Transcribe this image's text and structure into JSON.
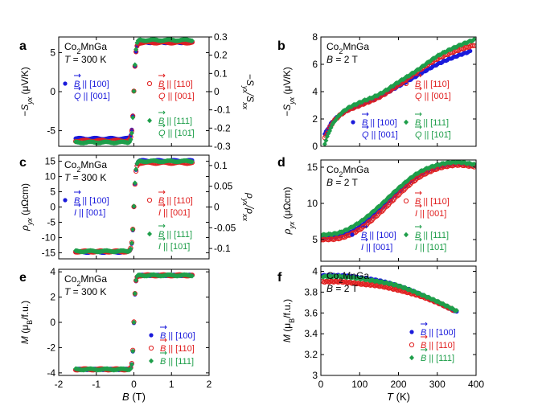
{
  "colors": {
    "blue": "#1a1adb",
    "red": "#e02020",
    "green": "#1e9e4a",
    "axis": "#000000"
  },
  "chart_data": [
    {
      "id": "a",
      "type": "line",
      "panel_label": "a",
      "title_lines": [
        "Co2MnGa",
        "T = 300 K"
      ],
      "xlim": [
        -2,
        2
      ],
      "ylim": [
        -7,
        7
      ],
      "ylabel": "−S_yx (μV/K)",
      "yticks": [
        -5,
        0,
        5
      ],
      "y2label": "−S_yx/S_xx",
      "y2lim": [
        -0.3,
        0.3
      ],
      "y2ticks": [
        0.3,
        0.2,
        0.1,
        0,
        -0.1,
        -0.2,
        -0.3
      ],
      "y2ticklabels": [
        "0.3",
        "0.2",
        "0.1",
        "0",
        "-0.1",
        "-0.2",
        "-0.3"
      ],
      "legend": [
        {
          "color": "blue",
          "marker": "dot",
          "field": "B",
          "fdir": "[100]",
          "sub": "Q",
          "sdir": "[001]"
        },
        {
          "color": "red",
          "marker": "open",
          "field": "B",
          "fdir": "[110]",
          "sub": "Q",
          "sdir": "[001]"
        },
        {
          "color": "green",
          "marker": "diamond",
          "field": "B",
          "fdir": "[111]",
          "sub": "Q",
          "sdir": "[101̄]"
        }
      ],
      "series": [
        {
          "name": "B||[100], Q||[001]",
          "color": "blue",
          "sat": 6.3,
          "offset": -6.0,
          "width": 0.05
        },
        {
          "name": "B||[110], Q||[001]",
          "color": "red",
          "sat": 6.3,
          "offset": -6.3,
          "width": 0.05
        },
        {
          "name": "B||[111], Q||[10-1]",
          "color": "green",
          "sat": 6.6,
          "offset": -6.5,
          "width": 0.05
        }
      ]
    },
    {
      "id": "b",
      "type": "line",
      "panel_label": "b",
      "title_lines": [
        "Co2MnGa",
        "B = 2 T"
      ],
      "xlim": [
        0,
        400
      ],
      "ylim": [
        0,
        8
      ],
      "ylabel": "−S_yx (μV/K)",
      "yticks": [
        0,
        2,
        4,
        6,
        8
      ],
      "legend": [
        {
          "color": "blue",
          "marker": "dot",
          "field": "B",
          "fdir": "[100]",
          "sub": "Q",
          "sdir": "[001]"
        },
        {
          "color": "red",
          "marker": "open",
          "field": "B",
          "fdir": "[110]",
          "sub": "Q",
          "sdir": "[001]"
        },
        {
          "color": "green",
          "marker": "diamond",
          "field": "B",
          "fdir": "[111]",
          "sub": "Q",
          "sdir": "[101̄]"
        }
      ],
      "series": [
        {
          "name": "B||[100]",
          "color": "blue",
          "x": [
            10,
            30,
            60,
            100,
            150,
            200,
            250,
            300,
            350,
            385
          ],
          "y": [
            0.9,
            1.8,
            2.5,
            3.0,
            3.6,
            4.4,
            5.2,
            6.0,
            6.6,
            6.95
          ]
        },
        {
          "name": "B||[110]",
          "color": "red",
          "x": [
            10,
            30,
            60,
            100,
            150,
            200,
            250,
            300,
            350,
            395
          ],
          "y": [
            0.6,
            1.7,
            2.5,
            3.0,
            3.6,
            4.5,
            5.5,
            6.4,
            7.0,
            7.4
          ]
        },
        {
          "name": "B||[111]",
          "color": "green",
          "x": [
            10,
            30,
            60,
            100,
            150,
            200,
            250,
            300,
            350,
            395
          ],
          "y": [
            0.2,
            1.6,
            2.6,
            3.2,
            3.8,
            4.7,
            5.6,
            6.6,
            7.3,
            7.8
          ]
        }
      ]
    },
    {
      "id": "c",
      "type": "line",
      "panel_label": "c",
      "title_lines": [
        "Co2MnGa",
        "T = 300 K"
      ],
      "xlim": [
        -2,
        2
      ],
      "ylim": [
        -17,
        17
      ],
      "ylabel": "ρ_yx (μΩcm)",
      "yticks": [
        -15,
        -10,
        -5,
        0,
        5,
        10,
        15
      ],
      "y2label": "ρ_yx/ρ_xx",
      "y2lim": [
        -0.125,
        0.125
      ],
      "y2ticks": [
        0.1,
        0.05,
        0,
        -0.05,
        -0.1
      ],
      "y2ticklabels": [
        "0.1",
        "0.05",
        "0",
        "-0.05",
        "-0.1"
      ],
      "legend": [
        {
          "color": "blue",
          "marker": "dot",
          "field": "B",
          "fdir": "[100]",
          "sub": "I",
          "sdir": "[001]"
        },
        {
          "color": "red",
          "marker": "open",
          "field": "B",
          "fdir": "[110]",
          "sub": "I",
          "sdir": "[001]"
        },
        {
          "color": "green",
          "marker": "diamond",
          "field": "B",
          "fdir": "[111]",
          "sub": "I",
          "sdir": "[101̄]"
        }
      ],
      "series": [
        {
          "name": "B||[100], I||[001]",
          "color": "blue",
          "sat": 15.2,
          "offset": -14.8,
          "width": 0.05
        },
        {
          "name": "B||[110], I||[001]",
          "color": "red",
          "sat": 14.5,
          "offset": -14.6,
          "width": 0.05
        },
        {
          "name": "B||[111], I||[10-1]",
          "color": "green",
          "sat": 15.0,
          "offset": -14.5,
          "width": 0.05
        }
      ]
    },
    {
      "id": "d",
      "type": "line",
      "panel_label": "d",
      "title_lines": [
        "Co2MnGa",
        "B = 2 T"
      ],
      "xlim": [
        0,
        400
      ],
      "ylim": [
        2,
        16
      ],
      "ylabel": "ρ_yx (μΩcm)",
      "yticks": [
        5,
        10,
        15
      ],
      "legend": [
        {
          "color": "blue",
          "marker": "dot",
          "field": "B",
          "fdir": "[100]",
          "sub": "I",
          "sdir": "[001]"
        },
        {
          "color": "red",
          "marker": "open",
          "field": "B",
          "fdir": "[110]",
          "sub": "I",
          "sdir": "[001]"
        },
        {
          "color": "green",
          "marker": "diamond",
          "field": "B",
          "fdir": "[111]",
          "sub": "I",
          "sdir": "[101̄]"
        }
      ],
      "series": [
        {
          "name": "B||[100]",
          "color": "blue",
          "x": [
            0,
            50,
            100,
            150,
            200,
            250,
            300,
            350,
            395
          ],
          "y": [
            5.2,
            5.5,
            6.8,
            9.0,
            11.6,
            13.8,
            15.0,
            15.5,
            15.3
          ]
        },
        {
          "name": "B||[110]",
          "color": "red",
          "x": [
            0,
            50,
            100,
            150,
            200,
            250,
            300,
            350,
            395
          ],
          "y": [
            5.0,
            5.2,
            6.4,
            8.6,
            11.2,
            13.5,
            14.8,
            15.3,
            15.1
          ]
        },
        {
          "name": "B||[111]",
          "color": "green",
          "x": [
            0,
            50,
            100,
            150,
            200,
            250,
            300,
            350,
            395
          ],
          "y": [
            5.6,
            6.0,
            7.4,
            9.6,
            12.1,
            14.2,
            15.3,
            15.7,
            15.4
          ]
        }
      ]
    },
    {
      "id": "e",
      "type": "line",
      "panel_label": "e",
      "title_lines": [
        "Co2MnGa",
        "T = 300 K"
      ],
      "xlim": [
        -2,
        2
      ],
      "ylim": [
        -4.2,
        4.2
      ],
      "xlabel": "B (T)",
      "xticks": [
        -2,
        -1,
        0,
        1,
        2
      ],
      "ylabel": "M (μB/f.u.)",
      "yticks": [
        -4,
        -2,
        0,
        2,
        4
      ],
      "legend": [
        {
          "color": "blue",
          "marker": "dot",
          "field": "B",
          "fdir": "[100]"
        },
        {
          "color": "red",
          "marker": "open",
          "field": "B",
          "fdir": "[110]"
        },
        {
          "color": "green",
          "marker": "diamond",
          "field": "B",
          "fdir": "[111]"
        }
      ],
      "series": [
        {
          "name": "B||[100]",
          "color": "blue",
          "sat": 3.72,
          "offset": -3.72,
          "width": 0.04
        },
        {
          "name": "B||[110]",
          "color": "red",
          "sat": 3.72,
          "offset": -3.72,
          "width": 0.04
        },
        {
          "name": "B||[111]",
          "color": "green",
          "sat": 3.72,
          "offset": -3.72,
          "width": 0.04
        }
      ]
    },
    {
      "id": "f",
      "type": "line",
      "panel_label": "f",
      "title_lines": [
        "Co2MnGa",
        "B = 2 T"
      ],
      "xlim": [
        0,
        400
      ],
      "ylim": [
        3.0,
        4.05
      ],
      "xlabel": "T (K)",
      "xticks": [
        0,
        100,
        200,
        300,
        400
      ],
      "ylabel": "M (μB/f.u.)",
      "yticks": [
        3,
        3.2,
        3.4,
        3.6,
        3.8,
        4
      ],
      "yticklabels": [
        "3",
        "3.2",
        "3.4",
        "3.6",
        "3.8",
        "4"
      ],
      "legend": [
        {
          "color": "blue",
          "marker": "dot",
          "field": "B",
          "fdir": "[100]"
        },
        {
          "color": "red",
          "marker": "open",
          "field": "B",
          "fdir": "[110]"
        },
        {
          "color": "green",
          "marker": "diamond",
          "field": "B",
          "fdir": "[111]"
        }
      ],
      "series": [
        {
          "name": "B||[100]",
          "color": "blue",
          "x": [
            5,
            50,
            100,
            150,
            200,
            250,
            300,
            350
          ],
          "y": [
            3.96,
            3.96,
            3.94,
            3.91,
            3.86,
            3.79,
            3.7,
            3.61
          ]
        },
        {
          "name": "B||[110]",
          "color": "red",
          "x": [
            5,
            50,
            100,
            150,
            200,
            250,
            300,
            340
          ],
          "y": [
            3.9,
            3.9,
            3.88,
            3.86,
            3.82,
            3.77,
            3.7,
            3.63
          ]
        },
        {
          "name": "B||[111]",
          "color": "green",
          "x": [
            5,
            50,
            100,
            150,
            200,
            250,
            300,
            350
          ],
          "y": [
            3.95,
            3.95,
            3.93,
            3.9,
            3.86,
            3.79,
            3.71,
            3.62
          ]
        }
      ]
    }
  ]
}
